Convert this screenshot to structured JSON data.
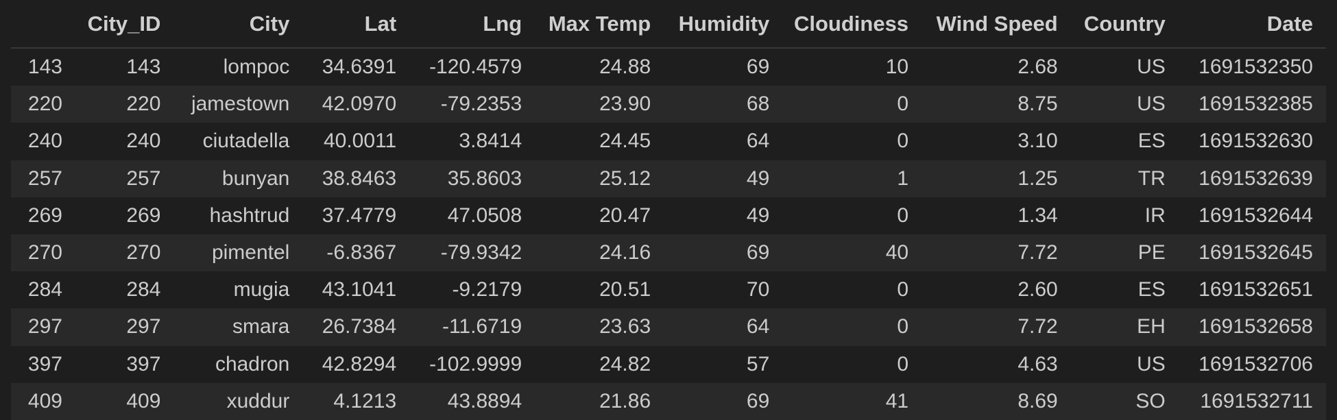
{
  "table": {
    "columns": [
      "",
      "City_ID",
      "City",
      "Lat",
      "Lng",
      "Max Temp",
      "Humidity",
      "Cloudiness",
      "Wind Speed",
      "Country",
      "Date"
    ],
    "rows": [
      [
        "143",
        "143",
        "lompoc",
        "34.6391",
        "-120.4579",
        "24.88",
        "69",
        "10",
        "2.68",
        "US",
        "1691532350"
      ],
      [
        "220",
        "220",
        "jamestown",
        "42.0970",
        "-79.2353",
        "23.90",
        "68",
        "0",
        "8.75",
        "US",
        "1691532385"
      ],
      [
        "240",
        "240",
        "ciutadella",
        "40.0011",
        "3.8414",
        "24.45",
        "64",
        "0",
        "3.10",
        "ES",
        "1691532630"
      ],
      [
        "257",
        "257",
        "bunyan",
        "38.8463",
        "35.8603",
        "25.12",
        "49",
        "1",
        "1.25",
        "TR",
        "1691532639"
      ],
      [
        "269",
        "269",
        "hashtrud",
        "37.4779",
        "47.0508",
        "20.47",
        "49",
        "0",
        "1.34",
        "IR",
        "1691532644"
      ],
      [
        "270",
        "270",
        "pimentel",
        "-6.8367",
        "-79.9342",
        "24.16",
        "69",
        "40",
        "7.72",
        "PE",
        "1691532645"
      ],
      [
        "284",
        "284",
        "mugia",
        "43.1041",
        "-9.2179",
        "20.51",
        "70",
        "0",
        "2.60",
        "ES",
        "1691532651"
      ],
      [
        "297",
        "297",
        "smara",
        "26.7384",
        "-11.6719",
        "23.63",
        "64",
        "0",
        "7.72",
        "EH",
        "1691532658"
      ],
      [
        "397",
        "397",
        "chadron",
        "42.8294",
        "-102.9999",
        "24.82",
        "57",
        "0",
        "4.63",
        "US",
        "1691532706"
      ],
      [
        "409",
        "409",
        "xuddur",
        "4.1213",
        "43.8894",
        "21.86",
        "69",
        "41",
        "8.69",
        "SO",
        "1691532711"
      ]
    ]
  },
  "colors": {
    "background": "#1e1e1e",
    "stripe": "#292929",
    "text": "#cccccc"
  }
}
